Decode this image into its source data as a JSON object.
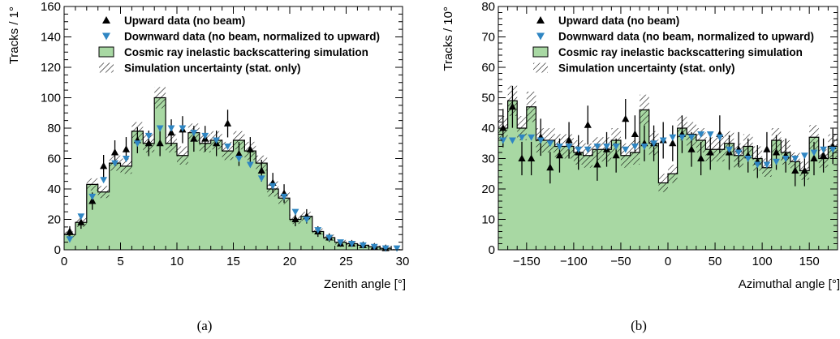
{
  "colors": {
    "upward": "#000000",
    "downward": "#2f86c3",
    "simulation_fill": "#a8d8a3",
    "simulation_line": "#000000"
  },
  "chart_data": [
    {
      "type": "histogram",
      "caption": "(a)",
      "xlabel": "Zenith angle [°]",
      "ylabel": "Tracks / 1°",
      "xlim": [
        0,
        30
      ],
      "ylim": [
        0,
        160
      ],
      "xticks": [
        "0",
        "5",
        "10",
        "15",
        "20",
        "25",
        "30"
      ],
      "yticks": [
        "0",
        "20",
        "40",
        "60",
        "80",
        "100",
        "120",
        "140",
        "160"
      ],
      "legend": [
        {
          "key": "upward",
          "label": "Upward data (no beam)"
        },
        {
          "key": "downward",
          "label": "Downward data (no beam, normalized to upward)"
        },
        {
          "key": "simulation",
          "label": "Cosmic ray inelastic backscattering simulation"
        },
        {
          "key": "uncertainty",
          "label": "Simulation uncertainty (stat. only)"
        }
      ],
      "bin_edges": [
        0,
        1,
        2,
        3,
        4,
        5,
        6,
        7,
        8,
        9,
        10,
        11,
        12,
        13,
        14,
        15,
        16,
        17,
        18,
        19,
        20,
        21,
        22,
        23,
        24,
        25,
        26,
        27,
        28,
        29,
        30
      ],
      "simulation": [
        10,
        18,
        43,
        38,
        57,
        55,
        78,
        70,
        100,
        70,
        62,
        77,
        70,
        72,
        65,
        72,
        65,
        57,
        40,
        34,
        20,
        22,
        12,
        8,
        5,
        4,
        3,
        2,
        1,
        0
      ],
      "simulation_uncertainty": [
        2,
        3,
        4,
        4,
        5,
        5,
        6,
        6,
        7,
        6,
        6,
        6,
        6,
        6,
        6,
        6,
        6,
        5,
        5,
        4,
        3,
        3,
        2,
        2,
        1.5,
        1.5,
        1,
        1,
        1,
        0.5
      ],
      "upward": {
        "x": [
          0.5,
          1.5,
          2.5,
          3.5,
          4.5,
          5.5,
          6.5,
          7.5,
          8.5,
          9.5,
          10.5,
          11.5,
          12.5,
          13.5,
          14.5,
          15.5,
          16.5,
          17.5,
          18.5,
          19.5,
          20.5,
          21.5,
          22.5,
          23.5,
          24.5,
          25.5,
          26.5,
          27.5,
          28.5
        ],
        "y": [
          12,
          18,
          32,
          55,
          64,
          66,
          72,
          70,
          70,
          77,
          79,
          73,
          73,
          70,
          83,
          63,
          66,
          52,
          44,
          37,
          20,
          22,
          12,
          8,
          4,
          4,
          3,
          2,
          1
        ],
        "err": [
          3.5,
          4.2,
          5.7,
          7.4,
          8,
          8.1,
          8.5,
          8.4,
          8.4,
          8.8,
          8.9,
          8.5,
          8.5,
          8.4,
          9.1,
          7.9,
          8.1,
          7.2,
          6.6,
          6.1,
          4.5,
          4.7,
          3.5,
          2.8,
          2,
          2,
          1.7,
          1.4,
          1
        ]
      },
      "downward": {
        "x": [
          0.5,
          1.5,
          2.5,
          3.5,
          4.5,
          5.5,
          6.5,
          7.5,
          8.5,
          9.5,
          10.5,
          11.5,
          12.5,
          13.5,
          14.5,
          15.5,
          16.5,
          17.5,
          18.5,
          19.5,
          20.5,
          21.5,
          22.5,
          23.5,
          24.5,
          25.5,
          26.5,
          27.5,
          28.5,
          29.5
        ],
        "y": [
          7,
          22,
          35,
          46,
          57,
          60,
          70,
          75,
          80,
          80,
          80,
          77,
          75,
          72,
          68,
          60,
          56,
          47,
          42,
          35,
          25,
          20,
          13,
          8,
          5,
          4,
          3,
          2,
          1,
          1
        ]
      }
    },
    {
      "type": "histogram",
      "caption": "(b)",
      "xlabel": "Azimuthal angle [°]",
      "ylabel": "Tracks / 10°",
      "xlim": [
        -180,
        180
      ],
      "ylim": [
        0,
        80
      ],
      "xticks": [
        "−150",
        "−100",
        "−50",
        "0",
        "50",
        "100",
        "150"
      ],
      "yticks": [
        "0",
        "10",
        "20",
        "30",
        "40",
        "50",
        "60",
        "70",
        "80"
      ],
      "legend": [
        {
          "key": "upward",
          "label": "Upward data (no beam)"
        },
        {
          "key": "downward",
          "label": "Downward data (no beam, normalized to upward)"
        },
        {
          "key": "simulation",
          "label": "Cosmic ray inelastic backscattering simulation"
        },
        {
          "key": "uncertainty",
          "label": "Simulation uncertainty (stat. only)"
        }
      ],
      "bin_edges": [
        -180,
        -170,
        -160,
        -150,
        -140,
        -130,
        -120,
        -110,
        -100,
        -90,
        -80,
        -70,
        -60,
        -50,
        -40,
        -30,
        -20,
        -10,
        0,
        10,
        20,
        30,
        40,
        50,
        60,
        70,
        80,
        90,
        100,
        110,
        120,
        130,
        140,
        150,
        160,
        170,
        180
      ],
      "simulation": [
        40,
        49,
        40,
        47,
        36,
        36,
        34,
        34,
        32,
        31,
        33,
        33,
        36,
        31,
        32,
        46,
        35,
        22,
        25,
        40,
        38,
        36,
        33,
        33,
        35,
        31,
        34,
        30,
        27,
        36,
        32,
        29,
        26,
        37,
        30,
        34
      ],
      "simulation_uncertainty": [
        4,
        5,
        4,
        5,
        4,
        4,
        4,
        4,
        4,
        4,
        4,
        4,
        4,
        4,
        4,
        5,
        4,
        3,
        3,
        4,
        4,
        4,
        4,
        4,
        4,
        4,
        4,
        4,
        3,
        4,
        4,
        3,
        3,
        4,
        3,
        4
      ],
      "upward": {
        "x": [
          -175,
          -165,
          -155,
          -145,
          -135,
          -125,
          -115,
          -105,
          -95,
          -85,
          -75,
          -65,
          -55,
          -45,
          -35,
          -25,
          -15,
          -5,
          5,
          15,
          25,
          35,
          45,
          55,
          65,
          75,
          85,
          95,
          105,
          115,
          125,
          135,
          145,
          155,
          165,
          175
        ],
        "y": [
          40,
          47,
          30,
          30,
          37,
          27,
          31,
          36,
          32,
          41,
          28,
          33,
          31,
          43,
          38,
          35,
          35,
          36,
          35,
          38,
          33,
          30,
          32,
          38,
          32,
          33,
          31,
          29,
          33,
          32,
          31,
          26,
          26,
          30,
          31,
          34
        ],
        "err": [
          6.3,
          6.9,
          5.5,
          5.5,
          6.1,
          5.2,
          5.6,
          6,
          5.7,
          6.4,
          5.3,
          5.7,
          5.6,
          6.6,
          6.2,
          5.9,
          5.9,
          6,
          5.9,
          6.2,
          5.7,
          5.5,
          5.7,
          6.2,
          5.7,
          5.7,
          5.6,
          5.4,
          5.7,
          5.7,
          5.6,
          5.1,
          5.1,
          5.5,
          5.6,
          5.8
        ]
      },
      "downward": {
        "x": [
          -175,
          -165,
          -155,
          -145,
          -135,
          -125,
          -115,
          -105,
          -95,
          -85,
          -75,
          -65,
          -55,
          -45,
          -35,
          -25,
          -15,
          -5,
          5,
          15,
          25,
          35,
          45,
          55,
          65,
          75,
          85,
          95,
          105,
          115,
          125,
          135,
          145,
          155,
          165,
          175
        ],
        "y": [
          36,
          36,
          37,
          37,
          36,
          35,
          34,
          34,
          33,
          33,
          34,
          34,
          34,
          33,
          34,
          34,
          35,
          36,
          37,
          37,
          37,
          38,
          38,
          37,
          33,
          32,
          30,
          28,
          28,
          29,
          30,
          30,
          31,
          32,
          33,
          33
        ]
      }
    }
  ]
}
